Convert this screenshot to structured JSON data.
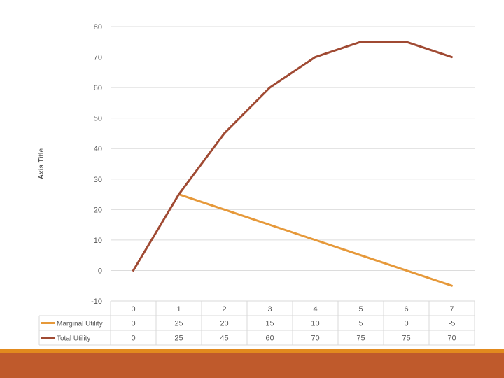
{
  "chart_data": {
    "type": "line",
    "ylabel": "Axis Title",
    "ylim": [
      -10,
      80
    ],
    "yticks": [
      -10,
      0,
      10,
      20,
      30,
      40,
      50,
      60,
      70,
      80
    ],
    "grid": true,
    "legend": "data-table",
    "categories": [
      "0",
      "1",
      "2",
      "3",
      "4",
      "5",
      "6",
      "7"
    ],
    "series": [
      {
        "name": "Marginal Utility",
        "color": "#e6993a",
        "values": [
          null,
          25,
          20,
          15,
          10,
          5,
          0,
          -5
        ],
        "table_values": [
          "0",
          "25",
          "20",
          "15",
          "10",
          "5",
          "0",
          "-5"
        ]
      },
      {
        "name": "Total Utility",
        "color": "#a04a33",
        "values": [
          0,
          25,
          45,
          60,
          70,
          75,
          75,
          70
        ],
        "table_values": [
          "0",
          "25",
          "45",
          "60",
          "70",
          "75",
          "75",
          "70"
        ]
      }
    ]
  },
  "footer": {
    "accent_color": "#e28a1e",
    "band_color": "#bf5a2c"
  }
}
